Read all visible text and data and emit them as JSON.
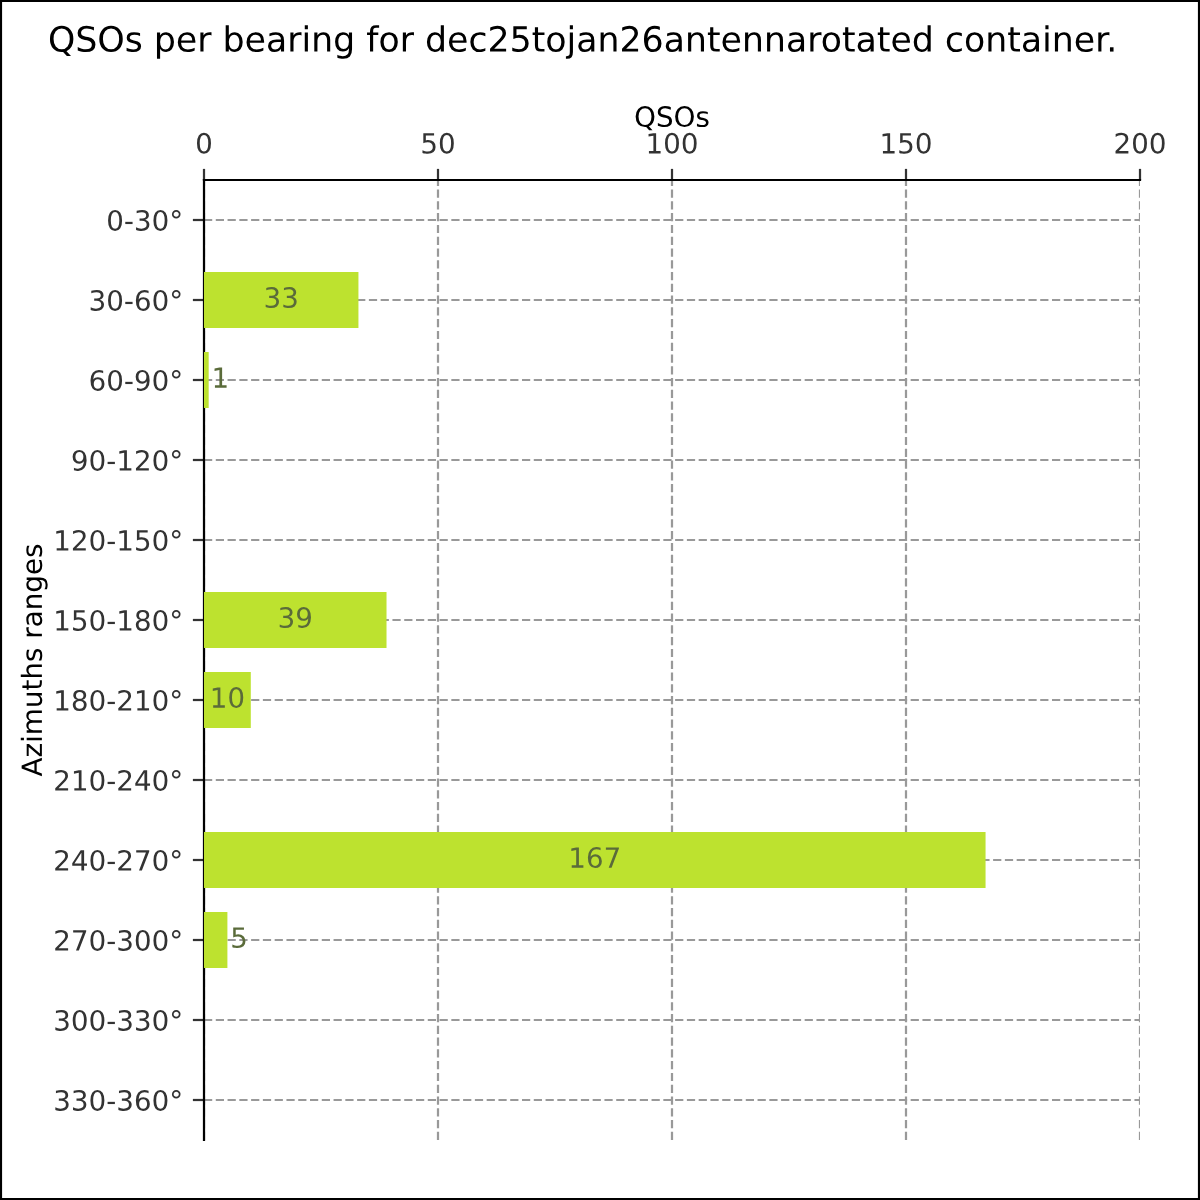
{
  "chart_data": {
    "type": "bar",
    "orientation": "horizontal",
    "title": "QSOs per bearing for dec25tojan26antennarotated container.",
    "xlabel": "QSOs",
    "ylabel": "Azimuths ranges",
    "categories": [
      "0-30°",
      "30-60°",
      "60-90°",
      "90-120°",
      "120-150°",
      "150-180°",
      "180-210°",
      "210-240°",
      "240-270°",
      "270-300°",
      "300-330°",
      "330-360°"
    ],
    "values": [
      0,
      33,
      1,
      0,
      0,
      39,
      10,
      0,
      167,
      5,
      0,
      0
    ],
    "value_labels": [
      null,
      "33",
      "1",
      null,
      null,
      "39",
      "10",
      null,
      "167",
      "5",
      null,
      null
    ],
    "color": "#bde22f",
    "xlim": [
      0,
      200
    ],
    "xticks": [
      0,
      50,
      100,
      150,
      200
    ],
    "grid": true
  }
}
